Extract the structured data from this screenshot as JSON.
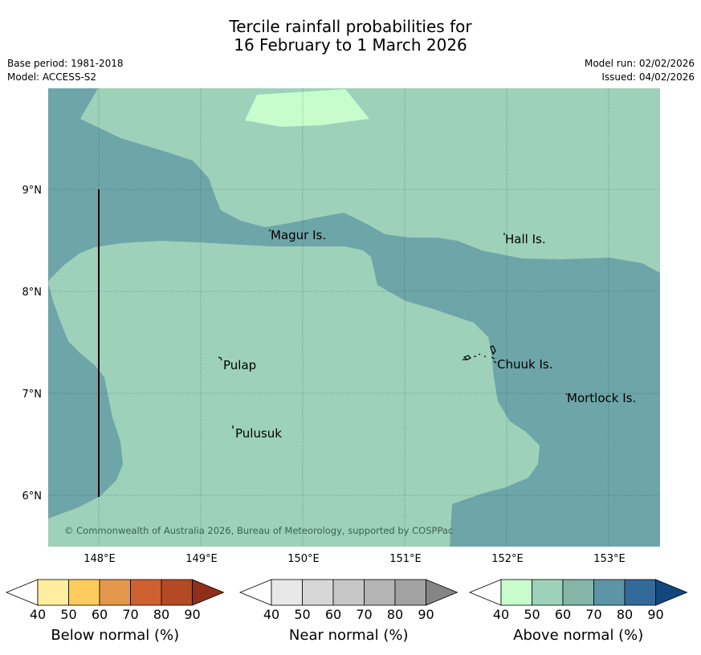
{
  "title_line1": "Tercile rainfall probabilities for",
  "title_line2": "16 February to 1 March 2026",
  "base_period": "Base period: 1981-2018",
  "model": "Model: ACCESS-S2",
  "model_run": "Model run: 02/02/2026",
  "issued": "Issued: 04/02/2026",
  "map": {
    "lon_ticks": [
      "148°E",
      "149°E",
      "150°E",
      "151°E",
      "152°E",
      "153°E"
    ],
    "lat_ticks": [
      "9°N",
      "8°N",
      "7°N",
      "6°N"
    ],
    "places": [
      {
        "name": "Magur Is."
      },
      {
        "name": "Hall Is."
      },
      {
        "name": "Pulap"
      },
      {
        "name": "Chuuk Is."
      },
      {
        "name": "Mortlock Is."
      },
      {
        "name": "Pulusuk"
      }
    ],
    "copyright": "© Commonwealth of Australia 2026, Bureau of Meteorology, supported by COSPPac",
    "fill_colors": {
      "above_50": "#9ed1ba",
      "above_70": "#6ea5a8",
      "above_40": "#c8fccc"
    }
  },
  "legends": [
    {
      "title": "Below normal (%)",
      "ticks": [
        "40",
        "50",
        "60",
        "70",
        "80",
        "90"
      ],
      "colors": [
        "#ffeda0",
        "#fecc5c",
        "#e3974a",
        "#cf6131",
        "#b34a25",
        "#8f2f1a"
      ]
    },
    {
      "title": "Near normal (%)",
      "ticks": [
        "40",
        "50",
        "60",
        "70",
        "80",
        "90"
      ],
      "colors": [
        "#e8e8e8",
        "#d7d7d7",
        "#c6c6c6",
        "#b4b4b4",
        "#a2a2a2",
        "#858585"
      ]
    },
    {
      "title": "Above normal (%)",
      "ticks": [
        "40",
        "50",
        "60",
        "70",
        "80",
        "90"
      ],
      "colors": [
        "#c8fccc",
        "#9ed1ba",
        "#84b5a6",
        "#5d94a6",
        "#336a9a",
        "#11477c"
      ]
    }
  ]
}
